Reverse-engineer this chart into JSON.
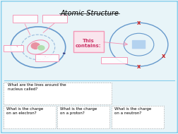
{
  "title": "Atomic Structure",
  "bg_color": "#e8f4f8",
  "border_color": "#87CEEB",
  "pink": "#f48fb1",
  "pink_light": "#fce4ec",
  "blue_orbit": "#6699cc",
  "blue_dashed": "#99bbdd",
  "red_x": "#cc2222",
  "nucleus_pink": "#e88899",
  "nucleus_green": "#aaddaa",
  "nucleus_blue": "#aaccee",
  "q1_text": "What are the lines around the\nnucleus called?",
  "q2_text": "What is the charge\non an electron?",
  "q3_text": "What is the charge\non a proton?",
  "q4_text": "What is the charge\non a neutron?",
  "this_contains_text": "This\ncontains:"
}
